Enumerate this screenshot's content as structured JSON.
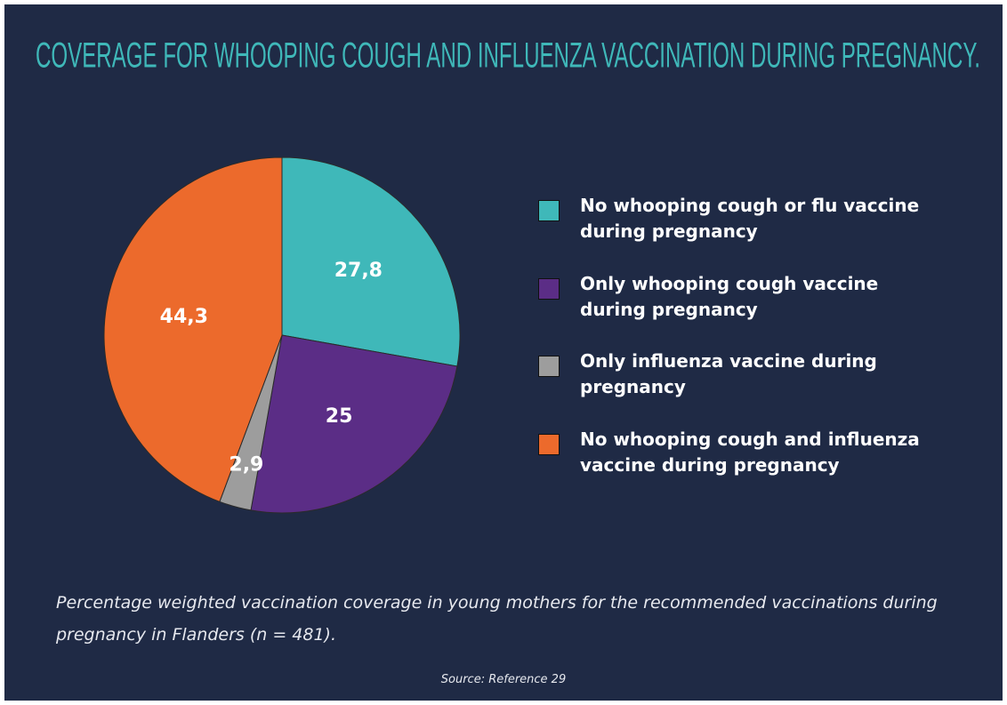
{
  "chart_data": {
    "type": "pie",
    "title": "COVERAGE FOR WHOOPING COUGH AND INFLUENZA VACCINATION DURING PREGNANCY.",
    "categories": [
      "No whooping cough or flu vaccine during pregnancy",
      "Only whooping cough vaccine during pregnancy",
      "Only influenza vaccine during pregnancy",
      "No whooping cough and influenza vaccine during pregnancy"
    ],
    "values": [
      27.8,
      25,
      2.9,
      44.3
    ],
    "value_labels": [
      "27,8",
      "25",
      "2,9",
      "44,3"
    ],
    "colors": [
      "#3fb8b9",
      "#5b2d86",
      "#9d9d9d",
      "#ec6a2c"
    ],
    "caption": "Percentage weighted vaccination coverage in young mothers for the recommended vaccinations during pregnancy in Flanders (n = 481).",
    "source": "Source: Reference 29",
    "legend": "right"
  }
}
